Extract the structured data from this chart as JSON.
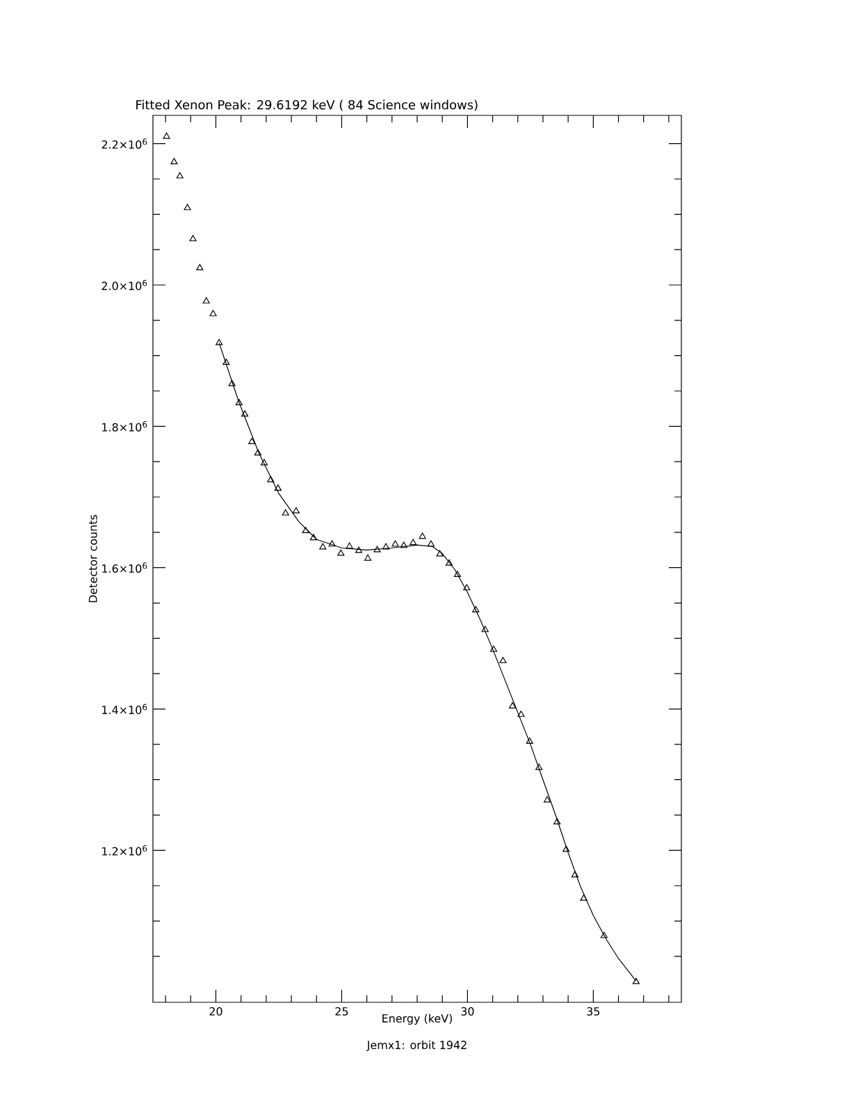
{
  "chart_data": {
    "type": "scatter",
    "title": "Fitted Xenon Peak: 29.6192 keV ( 84 Science windows)",
    "xlabel": "Energy (keV)",
    "ylabel": "Detector counts",
    "annotations": [
      "Jemx1: orbit 1942"
    ],
    "xlim": [
      17.5,
      38.5
    ],
    "ylim": [
      985000,
      2240000
    ],
    "xticks": [
      {
        "value": 18,
        "label": null
      },
      {
        "value": 19,
        "label": null
      },
      20,
      {
        "value": 21,
        "label": null
      },
      {
        "value": 22,
        "label": null
      },
      {
        "value": 23,
        "label": null
      },
      {
        "value": 24,
        "label": null
      },
      25,
      {
        "value": 26,
        "label": null
      },
      {
        "value": 27,
        "label": null
      },
      {
        "value": 28,
        "label": null
      },
      {
        "value": 29,
        "label": null
      },
      30,
      {
        "value": 31,
        "label": null
      },
      {
        "value": 32,
        "label": null
      },
      {
        "value": 33,
        "label": null
      },
      {
        "value": 34,
        "label": null
      },
      35,
      {
        "value": 36,
        "label": null
      },
      {
        "value": 37,
        "label": null
      },
      {
        "value": 38,
        "label": null
      }
    ],
    "yticks": [
      {
        "value": 1050000,
        "label": null
      },
      {
        "value": 1100000,
        "label": null
      },
      {
        "value": 1150000,
        "label": null
      },
      {
        "value": 1200000,
        "label": "1.2×10$^{6}$"
      },
      {
        "value": 1250000,
        "label": null
      },
      {
        "value": 1300000,
        "label": null
      },
      {
        "value": 1350000,
        "label": null
      },
      {
        "value": 1400000,
        "label": "1.4×10$^{6}$"
      },
      {
        "value": 1450000,
        "label": null
      },
      {
        "value": 1500000,
        "label": null
      },
      {
        "value": 1550000,
        "label": null
      },
      {
        "value": 1600000,
        "label": "1.6×10$^{6}$"
      },
      {
        "value": 1650000,
        "label": null
      },
      {
        "value": 1700000,
        "label": null
      },
      {
        "value": 1750000,
        "label": null
      },
      {
        "value": 1800000,
        "label": "1.8×10$^{6}$"
      },
      {
        "value": 1850000,
        "label": null
      },
      {
        "value": 1900000,
        "label": null
      },
      {
        "value": 1950000,
        "label": null
      },
      {
        "value": 2000000,
        "label": "2.0×10$^{6}$"
      },
      {
        "value": 2050000,
        "label": null
      },
      {
        "value": 2100000,
        "label": null
      },
      {
        "value": 2150000,
        "label": null
      },
      {
        "value": 2200000,
        "label": "2.2×10$^{6}$"
      }
    ],
    "grid": false,
    "series": [
      {
        "marker": "triangle",
        "color": "#000000",
        "x": [
          18.04,
          18.34,
          18.57,
          18.87,
          19.09,
          19.36,
          19.62,
          19.89,
          20.13,
          20.41,
          20.64,
          20.92,
          21.15,
          21.43,
          21.67,
          21.92,
          22.18,
          22.47,
          22.77,
          23.19,
          23.57,
          23.88,
          24.25,
          24.62,
          24.97,
          25.31,
          25.68,
          26.04,
          26.41,
          26.76,
          27.13,
          27.47,
          27.84,
          28.21,
          28.55,
          28.9,
          29.27,
          29.6,
          29.97,
          30.33,
          30.7,
          31.04,
          31.41,
          31.79,
          32.13,
          32.47,
          32.84,
          33.17,
          33.56,
          33.92,
          34.27,
          34.62,
          35.43,
          36.7
        ],
        "values": [
          2210000,
          2174000,
          2154000,
          2109000,
          2065000,
          2024000,
          1977000,
          1959000,
          1918000,
          1890000,
          1860000,
          1833000,
          1817000,
          1778000,
          1762000,
          1748000,
          1724000,
          1712000,
          1677000,
          1680000,
          1652000,
          1642000,
          1629000,
          1633000,
          1620000,
          1630000,
          1624000,
          1613000,
          1625000,
          1629000,
          1633000,
          1631000,
          1635000,
          1644000,
          1633000,
          1619000,
          1606000,
          1590000,
          1571000,
          1540000,
          1512000,
          1484000,
          1468000,
          1404000,
          1392000,
          1354000,
          1317000,
          1271000,
          1240000,
          1201000,
          1165000,
          1132000,
          1079000,
          1014000
        ]
      },
      {
        "type": "line",
        "marker": "none",
        "line_style": "solid",
        "color": "#000000",
        "x": [
          20.13,
          20.9,
          21.7,
          22.5,
          23.3,
          24.0,
          25.0,
          26.0,
          27.0,
          28.0,
          28.6,
          29.0,
          29.5,
          30.0,
          30.5,
          31.0,
          31.5,
          32.0,
          32.5,
          33.0,
          33.5,
          34.0,
          34.5,
          35.0,
          35.5,
          36.0,
          36.7
        ],
        "values": [
          1918000,
          1836000,
          1763000,
          1705000,
          1665000,
          1640000,
          1628000,
          1625000,
          1628000,
          1632000,
          1630000,
          1620000,
          1597000,
          1565000,
          1527000,
          1485000,
          1440000,
          1395000,
          1350000,
          1300000,
          1250000,
          1197000,
          1148000,
          1108000,
          1075000,
          1047000,
          1015000
        ]
      }
    ]
  }
}
